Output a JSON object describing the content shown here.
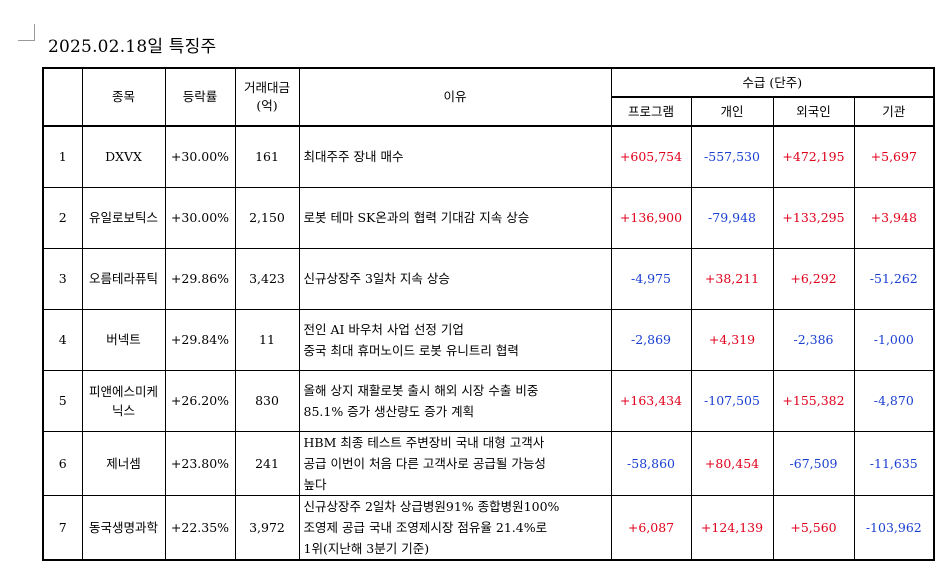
{
  "page": {
    "title": "2025.02.18일 특징주"
  },
  "table": {
    "headers": {
      "rank": "",
      "name": "종목",
      "change": "등락률",
      "volume_line1": "거래대금",
      "volume_line2": "(억)",
      "reason": "이유",
      "flow_group": "수급 (단주)",
      "program": "프로그램",
      "individual": "개인",
      "foreign": "외국인",
      "institution": "기관"
    },
    "rows": [
      {
        "rank": "1",
        "name": "DXVX",
        "change": "+30.00%",
        "volume": "161",
        "reason": [
          "최대주주 장내 매수"
        ],
        "program": "+605,754",
        "individual": "-557,530",
        "foreign": "+472,195",
        "institution": "+5,697"
      },
      {
        "rank": "2",
        "name": "유일로보틱스",
        "change": "+30.00%",
        "volume": "2,150",
        "reason": [
          "로봇 테마 SK온과의 협력 기대감 지속 상승"
        ],
        "program": "+136,900",
        "individual": "-79,948",
        "foreign": "+133,295",
        "institution": "+3,948"
      },
      {
        "rank": "3",
        "name": "오름테라퓨틱",
        "change": "+29.86%",
        "volume": "3,423",
        "reason": [
          "신규상장주 3일차 지속 상승"
        ],
        "program": "-4,975",
        "individual": "+38,211",
        "foreign": "+6,292",
        "institution": "-51,262"
      },
      {
        "rank": "4",
        "name": "버넥트",
        "change": "+29.84%",
        "volume": "11",
        "reason": [
          "전인 AI 바우처 사업 선정 기업",
          "중국 최대 휴머노이드 로봇 유니트리 협력"
        ],
        "program": "-2,869",
        "individual": "+4,319",
        "foreign": "-2,386",
        "institution": "-1,000"
      },
      {
        "rank": "5",
        "name": "피앤에스미케닉스",
        "change": "+26.20%",
        "volume": "830",
        "reason": [
          "올해 상지 재활로봇 출시 해외 시장 수출 비중",
          "85.1% 증가 생산량도 증가 계획"
        ],
        "program": "+163,434",
        "individual": "-107,505",
        "foreign": "+155,382",
        "institution": "-4,870"
      },
      {
        "rank": "6",
        "name": "제너셈",
        "change": "+23.80%",
        "volume": "241",
        "reason": [
          "HBM 최종 테스트 주변장비 국내 대형 고객사",
          "공급 이번이 처음 다른 고객사로 공급될 가능성",
          "높다"
        ],
        "program": "-58,860",
        "individual": "+80,454",
        "foreign": "-67,509",
        "institution": "-11,635"
      },
      {
        "rank": "7",
        "name": "동국생명과학",
        "change": "+22.35%",
        "volume": "3,972",
        "reason": [
          "신규상장주 2일차 상급병원91% 종합병원100%",
          "조영제 공급 국내 조영제시장 점유율 21.4%로",
          "1위(지난해 3분기 기준)"
        ],
        "program": "+6,087",
        "individual": "+124,139",
        "foreign": "+5,560",
        "institution": "-103,962"
      }
    ]
  },
  "colors": {
    "positive": "#e0001b",
    "negative": "#1a3fd1",
    "text": "#000000"
  }
}
